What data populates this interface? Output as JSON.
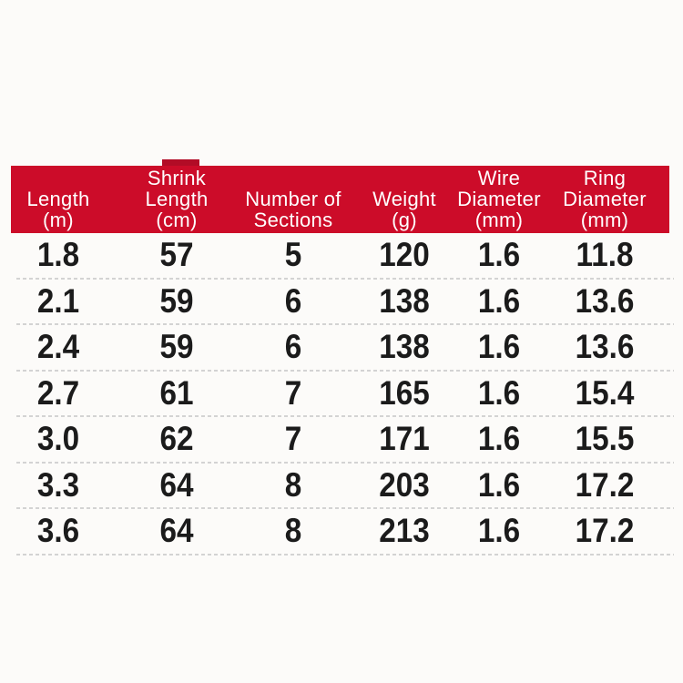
{
  "chart_data": {
    "type": "table",
    "title": "",
    "column_titles": [
      "Length (m)",
      "Shrink Length (cm)",
      "Number of Sections",
      "Weight (g)",
      "Wire Diameter (mm)",
      "Ring Diameter (mm)"
    ],
    "columns": [
      [
        "Length",
        "(m)"
      ],
      [
        "Shrink",
        "Length",
        "(cm)"
      ],
      [
        "Number of",
        "Sections"
      ],
      [
        "Weight",
        "(g)"
      ],
      [
        "Wire",
        "Diameter",
        "(mm)"
      ],
      [
        "Ring",
        "Diameter",
        "(mm)"
      ]
    ],
    "rows": [
      [
        "1.8",
        "57",
        "5",
        "120",
        "1.6",
        "11.8"
      ],
      [
        "2.1",
        "59",
        "6",
        "138",
        "1.6",
        "13.6"
      ],
      [
        "2.4",
        "59",
        "6",
        "138",
        "1.6",
        "13.6"
      ],
      [
        "2.7",
        "61",
        "7",
        "165",
        "1.6",
        "15.4"
      ],
      [
        "3.0",
        "62",
        "7",
        "171",
        "1.6",
        "15.5"
      ],
      [
        "3.3",
        "64",
        "8",
        "203",
        "1.6",
        "17.2"
      ],
      [
        "3.6",
        "64",
        "8",
        "213",
        "1.6",
        "17.2"
      ]
    ],
    "header_bg": "#cc0c29",
    "header_text_color": "#ffffff",
    "body_text_color": "#1b1b1b",
    "separator_color": "#d3d3d3",
    "background_color": "#fcfbf9",
    "grid": "dashed horizontal separators between rows",
    "legend_position": "none"
  }
}
